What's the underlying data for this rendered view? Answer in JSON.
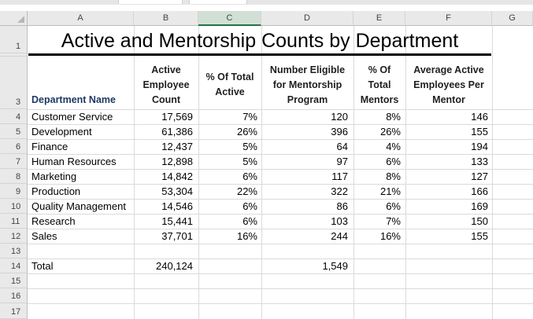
{
  "sheet": {
    "columns": [
      "A",
      "B",
      "C",
      "D",
      "E",
      "F",
      "G"
    ],
    "selected_column": "C",
    "row_numbers": [
      "1",
      "3",
      "4",
      "5",
      "6",
      "7",
      "8",
      "9",
      "10",
      "11",
      "12",
      "13",
      "14",
      "15",
      "16",
      "17"
    ],
    "title": "Active and Mentorship Counts by Department",
    "headers": {
      "dept": "Department Name",
      "active": [
        "Active",
        "Employee",
        "Count"
      ],
      "pct_active": [
        "% Of Total",
        "Active"
      ],
      "eligible": [
        "Number Eligible",
        "for Mentorship",
        "Program"
      ],
      "pct_mentors": [
        "% Of",
        "Total",
        "Mentors"
      ],
      "avg": [
        "Average Active",
        "Employees Per",
        "Mentor"
      ]
    },
    "rows": [
      {
        "name": "Customer Service",
        "active": "17,569",
        "pct_active": "7%",
        "eligible": "120",
        "pct_mentors": "8%",
        "avg": "146"
      },
      {
        "name": "Development",
        "active": "61,386",
        "pct_active": "26%",
        "eligible": "396",
        "pct_mentors": "26%",
        "avg": "155"
      },
      {
        "name": "Finance",
        "active": "12,437",
        "pct_active": "5%",
        "eligible": "64",
        "pct_mentors": "4%",
        "avg": "194"
      },
      {
        "name": "Human Resources",
        "active": "12,898",
        "pct_active": "5%",
        "eligible": "97",
        "pct_mentors": "6%",
        "avg": "133"
      },
      {
        "name": "Marketing",
        "active": "14,842",
        "pct_active": "6%",
        "eligible": "117",
        "pct_mentors": "8%",
        "avg": "127"
      },
      {
        "name": "Production",
        "active": "53,304",
        "pct_active": "22%",
        "eligible": "322",
        "pct_mentors": "21%",
        "avg": "166"
      },
      {
        "name": "Quality Management",
        "active": "14,546",
        "pct_active": "6%",
        "eligible": "86",
        "pct_mentors": "6%",
        "avg": "169"
      },
      {
        "name": "Research",
        "active": "15,441",
        "pct_active": "6%",
        "eligible": "103",
        "pct_mentors": "7%",
        "avg": "150"
      },
      {
        "name": "Sales",
        "active": "37,701",
        "pct_active": "16%",
        "eligible": "244",
        "pct_mentors": "16%",
        "avg": "155"
      }
    ],
    "total": {
      "name": "Total",
      "active": "240,124",
      "eligible": "1,549"
    }
  },
  "colors": {
    "selected_header": "#d2dfd4",
    "selected_accent": "#217346"
  }
}
